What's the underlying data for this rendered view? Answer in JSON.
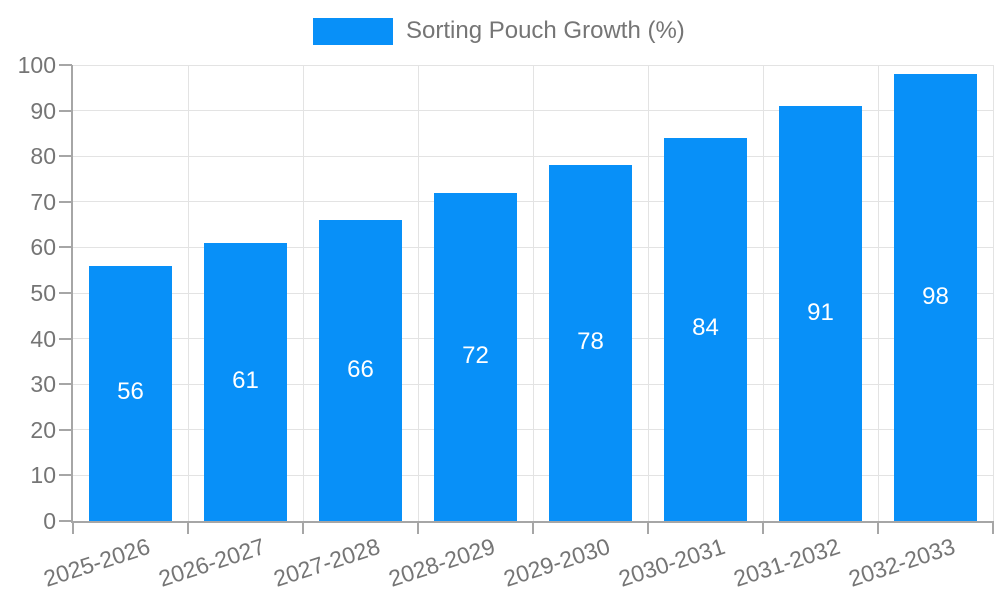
{
  "chart_data": {
    "type": "bar",
    "title": "",
    "xlabel": "",
    "ylabel": "",
    "categories": [
      "2025-2026",
      "2026-2027",
      "2027-2028",
      "2028-2029",
      "2029-2030",
      "2030-2031",
      "2031-2032",
      "2032-2033"
    ],
    "series": [
      {
        "name": "Sorting Pouch Growth (%)",
        "values": [
          56,
          61,
          66,
          72,
          78,
          84,
          91,
          98
        ]
      }
    ],
    "ylim": [
      0,
      100
    ],
    "ytick_step": 10,
    "grid": true,
    "legend_position": "top-center",
    "value_labels": "inside-center",
    "x_label_rotation_deg": -18
  },
  "colors": {
    "bar": "#0890f8",
    "axis_line": "#a6a6a6",
    "grid_line": "#e3e3e3",
    "tick_text": "#757575",
    "legend_text": "#757575",
    "value_label_text": "#ffffff",
    "background": "#ffffff"
  }
}
